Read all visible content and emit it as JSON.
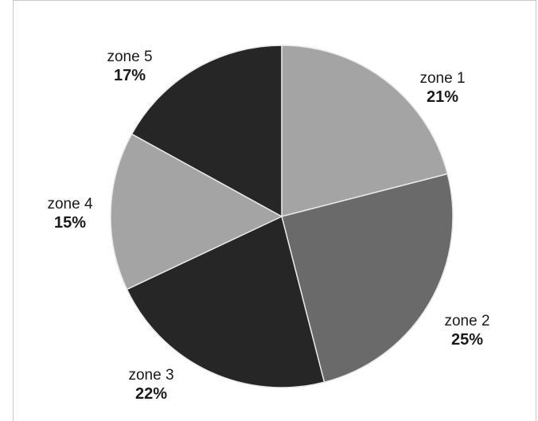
{
  "chart_data": {
    "type": "pie",
    "title": "",
    "start_angle_deg": 0,
    "direction": "clockwise",
    "slices": [
      {
        "label": "zone 1",
        "value": 21,
        "value_label": "21%",
        "color": "#a4a4a4"
      },
      {
        "label": "zone 2",
        "value": 25,
        "value_label": "25%",
        "color": "#6a6a6a"
      },
      {
        "label": "zone 3",
        "value": 22,
        "value_label": "22%",
        "color": "#262626"
      },
      {
        "label": "zone 4",
        "value": 15,
        "value_label": "15%",
        "color": "#a4a4a4"
      },
      {
        "label": "zone 5",
        "value": 17,
        "value_label": "17%",
        "color": "#262626"
      }
    ],
    "slice_border_color": "#e8e8e8"
  }
}
